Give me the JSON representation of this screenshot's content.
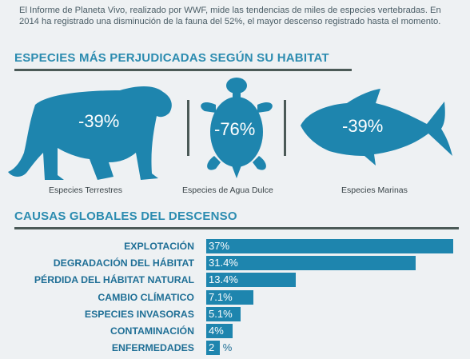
{
  "intro": "El Informe de Planeta Vivo, realizado por WWF, mide las tendencias de miles de especies vertebradas. En 2014 ha registrado una disminución de la fauna del 52%, el mayor descenso registrado hasta el momento.",
  "section1_title": "ESPECIES MÁS PERJUDICADAS SEGÚN SU HABITAT",
  "section2_title": "CAUSAS GLOBALES DEL DESCENSO",
  "colors": {
    "accent": "#1e85ae",
    "title": "#2c8cb0",
    "rule": "#4b5a57"
  },
  "chart_data": [
    {
      "type": "table",
      "categories": [
        "Especies Terrestres",
        "Especies de Agua Dulce",
        "Especies Marinas"
      ],
      "values": [
        -39,
        -76,
        -39
      ],
      "value_labels": [
        "-39%",
        "-76%",
        "-39%"
      ],
      "icons": [
        "tiger-icon",
        "turtle-icon",
        "tuna-icon"
      ]
    },
    {
      "type": "bar",
      "orientation": "horizontal",
      "categories": [
        "EXPLOTACIÓN",
        "DEGRADACIÓN DEL HÁBITAT",
        "PÉRDIDA DEL HÁBITAT NATURAL",
        "CAMBIO CLÍMATICO",
        "ESPECIES INVASORAS",
        "CONTAMINACIÓN",
        "ENFERMEDADES"
      ],
      "values": [
        37,
        31.4,
        13.4,
        7.1,
        5.1,
        4,
        2
      ],
      "value_labels": [
        "37%",
        "31.4%",
        "13.4%",
        "7.1%",
        "5.1%",
        "4%",
        "2"
      ],
      "xlim": [
        0,
        37
      ]
    }
  ]
}
